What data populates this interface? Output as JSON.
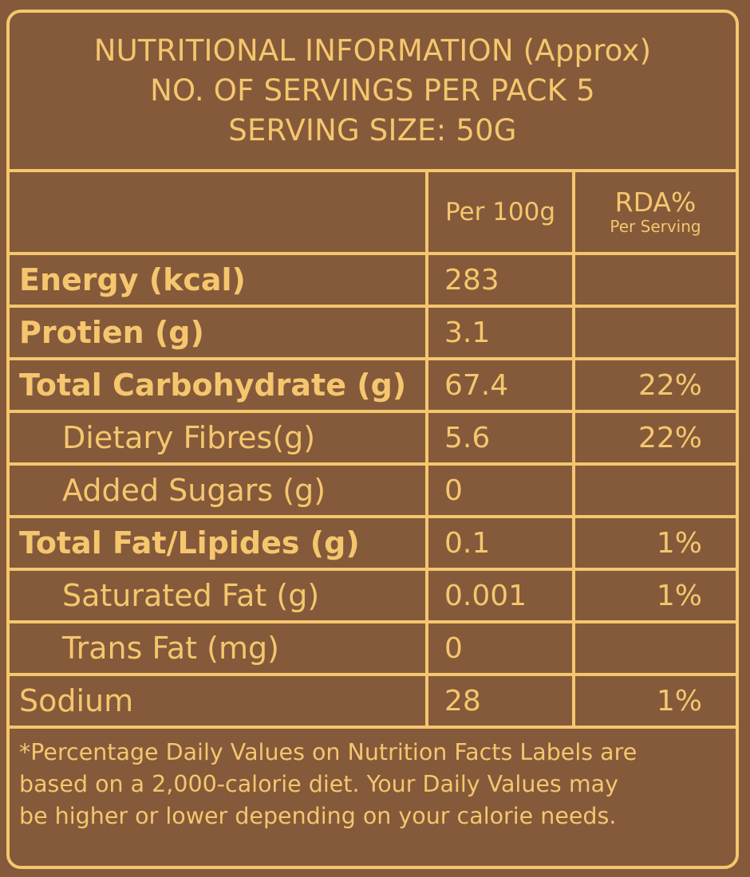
{
  "header": {
    "line1": "NUTRITIONAL INFORMATION (Approx)",
    "line2": "NO. OF SERVINGS PER PACK 5",
    "line3": "SERVING SIZE: 50G"
  },
  "columns": {
    "per100": "Per 100g",
    "rda_main": "RDA%",
    "rda_sub": "Per Serving"
  },
  "rows": [
    {
      "label": "Energy (kcal)",
      "value": "283",
      "rda": ""
    },
    {
      "label": "Protien (g)",
      "value": "3.1",
      "rda": ""
    },
    {
      "label": "Total Carbohydrate (g)",
      "value": "67.4",
      "rda": "22%"
    },
    {
      "label": "Dietary Fibres(g)",
      "value": "5.6",
      "rda": "22%"
    },
    {
      "label": "Added Sugars (g)",
      "value": "0",
      "rda": ""
    },
    {
      "label": "Total Fat/Lipides (g)",
      "value": "0.1",
      "rda": "1%"
    },
    {
      "label": "Saturated Fat (g)",
      "value": "0.001",
      "rda": "1%"
    },
    {
      "label": "Trans Fat (mg)",
      "value": "0",
      "rda": ""
    },
    {
      "label": "Sodium",
      "value": "28",
      "rda": "1%"
    }
  ],
  "footnote": {
    "line1": "*Percentage Daily Values on Nutrition Facts Labels are",
    "line2": "based on a 2,000-calorie diet. Your Daily Values may",
    "line3": "be higher or lower depending on your calorie needs."
  },
  "colors": {
    "background": "#845a3a",
    "accent": "#f5c66e"
  }
}
